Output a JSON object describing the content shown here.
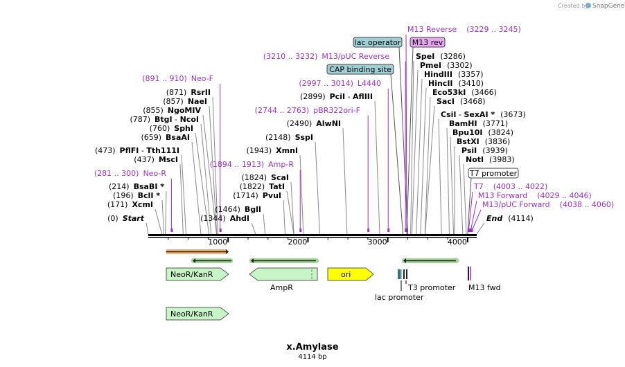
{
  "title": "x.Amylase",
  "length_label": "4114 bp",
  "length_bp": 4114,
  "watermark_prefix": "Created by",
  "watermark_brand": "SnapGene",
  "ruler_ticks": [
    {
      "bp": 1000,
      "label": "1000"
    },
    {
      "bp": 2000,
      "label": "2000"
    },
    {
      "bp": 3000,
      "label": "3000"
    },
    {
      "bp": 4000,
      "label": "4000"
    }
  ],
  "sites": [
    {
      "pos": "(0)",
      "name": "Start",
      "style": "endpoint",
      "bp": 0
    },
    {
      "pos": "(171)",
      "name": "XcmI",
      "bp": 171
    },
    {
      "pos": "(196)",
      "name": "BclI *",
      "bp": 196
    },
    {
      "pos": "(214)",
      "name": "BsaBI *",
      "bp": 214
    },
    {
      "pos": "(437)",
      "name": "MscI",
      "bp": 437
    },
    {
      "pos": "(473)",
      "name": "PflFI",
      "name2": "Tth111I",
      "bp": 473
    },
    {
      "pos": "(659)",
      "name": "BsaAI",
      "bp": 659
    },
    {
      "pos": "(760)",
      "name": "SphI",
      "bp": 760
    },
    {
      "pos": "(787)",
      "name": "BtgI",
      "name2": "NcoI",
      "bp": 787
    },
    {
      "pos": "(855)",
      "name": "NgoMIV",
      "bp": 855
    },
    {
      "pos": "(857)",
      "name": "NaeI",
      "bp": 857
    },
    {
      "pos": "(871)",
      "name": "RsrII",
      "bp": 871
    },
    {
      "pos": "(1344)",
      "name": "AhdI",
      "bp": 1344
    },
    {
      "pos": "(1464)",
      "name": "BglI",
      "bp": 1464
    },
    {
      "pos": "(1714)",
      "name": "PvuI",
      "bp": 1714
    },
    {
      "pos": "(1822)",
      "name": "TatI",
      "bp": 1822
    },
    {
      "pos": "(1824)",
      "name": "ScaI",
      "bp": 1824
    },
    {
      "pos": "(1943)",
      "name": "XmnI",
      "bp": 1943
    },
    {
      "pos": "(2148)",
      "name": "SspI",
      "bp": 2148
    },
    {
      "pos": "(2490)",
      "name": "AlwNI",
      "bp": 2490
    },
    {
      "pos": "(2899)",
      "name": "PciI",
      "name2": "AflIII",
      "bp": 2899
    },
    {
      "name": "SpeI",
      "pos": "(3286)",
      "bp": 3286
    },
    {
      "name": "PmeI",
      "pos": "(3302)",
      "bp": 3302
    },
    {
      "name": "HindIII",
      "pos": "(3357)",
      "bp": 3357
    },
    {
      "name": "HincII",
      "pos": "(3410)",
      "bp": 3410
    },
    {
      "name": "Eco53kI",
      "pos": "(3466)",
      "bp": 3466
    },
    {
      "name": "SacI",
      "pos": "(3468)",
      "bp": 3468
    },
    {
      "name": "CsiI",
      "name2": "SexAI *",
      "pos": "(3673)",
      "bp": 3673
    },
    {
      "name": "BamHI",
      "pos": "(3771)",
      "bp": 3771
    },
    {
      "name": "Bpu10I",
      "pos": "(3824)",
      "bp": 3824
    },
    {
      "name": "BstXI",
      "pos": "(3836)",
      "bp": 3836
    },
    {
      "name": "PsiI",
      "pos": "(3939)",
      "bp": 3939
    },
    {
      "name": "NotI",
      "pos": "(3983)",
      "bp": 3983
    },
    {
      "name": "End",
      "pos": "(4114)",
      "style": "endpoint",
      "bp": 4114
    }
  ],
  "primers": [
    {
      "range": "(891 .. 910)",
      "name": "Neo-F",
      "bp": 900
    },
    {
      "range": "(281 .. 300)",
      "name": "Neo-R",
      "bp": 290
    },
    {
      "range": "(1894 .. 1913)",
      "name": "Amp-R",
      "bp": 1903
    },
    {
      "range": "(2744 .. 2763)",
      "name": "pBR322ori-F",
      "bp": 2753
    },
    {
      "range": "(2997 .. 3014)",
      "name": "L4440",
      "bp": 3005
    },
    {
      "range": "(3210 .. 3232)",
      "name": "M13/pUC Reverse",
      "bp": 3221
    },
    {
      "name": "M13 Reverse",
      "range": "(3229 .. 3245)",
      "bp": 3237
    },
    {
      "name": "T7",
      "range": "(4003 .. 4022)",
      "bp": 4012
    },
    {
      "name": "M13 Forward",
      "range": "(4029 .. 4046)",
      "bp": 4037
    },
    {
      "name": "M13/pUC Forward",
      "range": "(4038 .. 4060)",
      "bp": 4049
    }
  ],
  "boxed_features": [
    {
      "label": "lac operator",
      "bp": 3250,
      "color": "#9fcfd6"
    },
    {
      "label": "M13 rev",
      "bp": 3237,
      "color": "#e7a6f0"
    },
    {
      "label": "CAP binding site",
      "bp": 3190,
      "color": "#9fcfd6"
    },
    {
      "label": "T7 promoter",
      "bp": 4000,
      "color": "#ffffff"
    }
  ],
  "features": [
    {
      "label": "NeoR/KanR",
      "start": 200,
      "end": 1000,
      "dir": "forward",
      "color": "#c6f5c6"
    },
    {
      "label": "AmpR",
      "start": 1280,
      "end": 2140,
      "dir": "reverse",
      "color": "#c6f5c6"
    },
    {
      "label": "ori",
      "start": 2270,
      "end": 2840,
      "dir": "forward",
      "color": "#ffff00"
    },
    {
      "label": "NeoR/KanR",
      "start": 200,
      "end": 1000,
      "dir": "forward",
      "color": "#c6f5c6"
    }
  ],
  "small_feature_labels": [
    {
      "label": "T3 promoter",
      "bp": 3460
    },
    {
      "label": "lac promoter",
      "bp": 3180
    },
    {
      "label": "M13 fwd",
      "bp": 4050
    }
  ],
  "colors": {
    "primer": "#9b2fcf",
    "orf_orange": "#f0a04b",
    "orf_green": "#7cc96b",
    "arrow": "#222222"
  }
}
